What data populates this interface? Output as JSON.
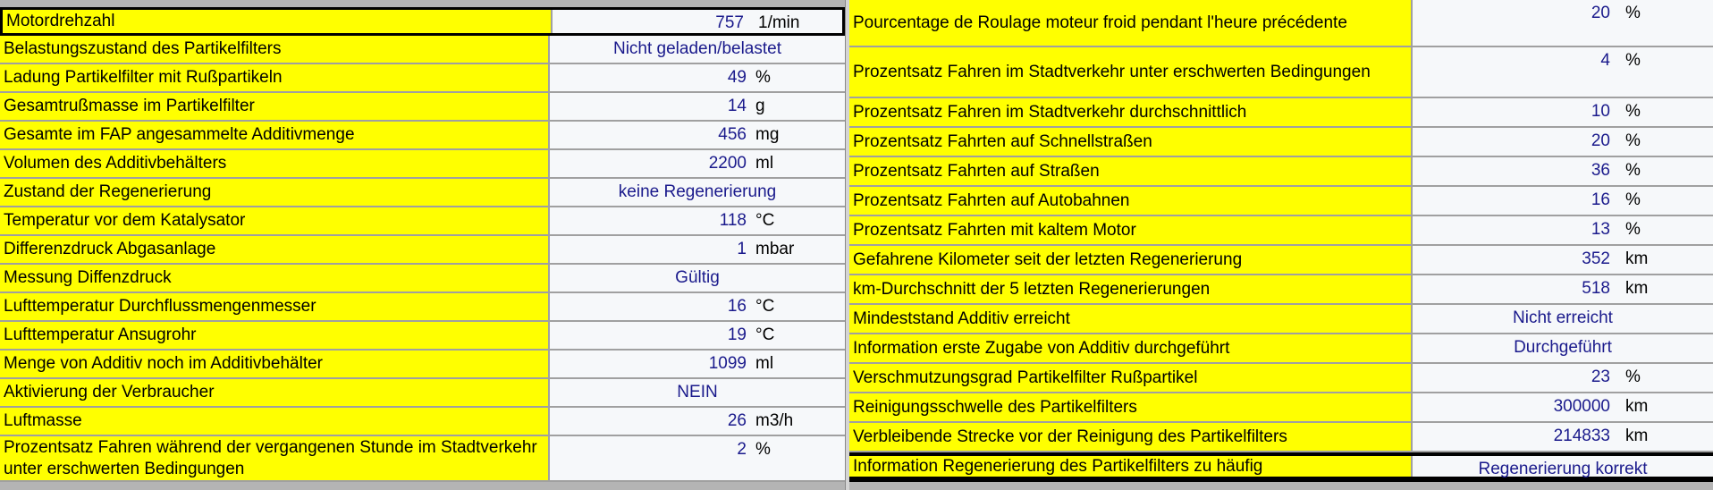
{
  "left": [
    {
      "label": "Motordrehzahl",
      "value": "757",
      "unit": "1/min"
    },
    {
      "label": "Belastungszustand des Partikelfilters",
      "text": "Nicht geladen/belastet"
    },
    {
      "label": "Ladung Partikelfilter mit Rußpartikeln",
      "value": "49",
      "unit": "%"
    },
    {
      "label": "Gesamtrußmasse im Partikelfilter",
      "value": "14",
      "unit": "g"
    },
    {
      "label": "Gesamte im FAP angesammelte Additivmenge",
      "value": "456",
      "unit": "mg"
    },
    {
      "label": "Volumen des Additivbehälters",
      "value": "2200",
      "unit": "ml"
    },
    {
      "label": "Zustand der Regenerierung",
      "text": "keine Regenerierung"
    },
    {
      "label": "Temperatur vor dem Katalysator",
      "value": "118",
      "unit": "°C"
    },
    {
      "label": "Differenzdruck Abgasanlage",
      "value": "1",
      "unit": "mbar"
    },
    {
      "label": "Messung Diffenzdruck",
      "text": "Gültig"
    },
    {
      "label": "Lufttemperatur Durchflussmengenmesser",
      "value": "16",
      "unit": "°C"
    },
    {
      "label": "Lufttemperatur Ansugrohr",
      "value": "19",
      "unit": "°C"
    },
    {
      "label": "Menge von Additiv noch im Additivbehälter",
      "value": "1099",
      "unit": "ml"
    },
    {
      "label": "Aktivierung der Verbraucher",
      "text": "NEIN"
    },
    {
      "label": "Luftmasse",
      "value": "26",
      "unit": "m3/h"
    },
    {
      "label": "Prozentsatz Fahren während der vergangenen Stunde im Stadtverkehr unter erschwerten Bedingungen",
      "value": "2",
      "unit": "%"
    }
  ],
  "right": [
    {
      "label": "Pourcentage de Roulage moteur froid pendant l'heure précédente",
      "value": "20",
      "unit": "%"
    },
    {
      "label": "Prozentsatz Fahren im Stadtverkehr unter erschwerten Bedingungen",
      "value": "4",
      "unit": "%"
    },
    {
      "label": "Prozentsatz Fahren im Stadtverkehr durchschnittlich",
      "value": "10",
      "unit": "%"
    },
    {
      "label": "Prozentsatz Fahrten auf Schnellstraßen",
      "value": "20",
      "unit": "%"
    },
    {
      "label": "Prozentsatz Fahrten auf Straßen",
      "value": "36",
      "unit": "%"
    },
    {
      "label": "Prozentsatz Fahrten auf Autobahnen",
      "value": "16",
      "unit": "%"
    },
    {
      "label": "Prozentsatz Fahrten mit kaltem Motor",
      "value": "13",
      "unit": "%"
    },
    {
      "label": "Gefahrene Kilometer seit der letzten Regenerierung",
      "value": "352",
      "unit": "km"
    },
    {
      "label": "km-Durchschnitt der 5 letzten Regenerierungen",
      "value": "518",
      "unit": "km"
    },
    {
      "label": "Mindeststand Additiv erreicht",
      "text": "Nicht erreicht"
    },
    {
      "label": "Information erste Zugabe von Additiv durchgeführt",
      "text": "Durchgeführt"
    },
    {
      "label": "Verschmutzungsgrad Partikelfilter Rußpartikel",
      "value": "23",
      "unit": "%"
    },
    {
      "label": "Reinigungsschwelle des Partikelfilters",
      "value": "300000",
      "unit": "km"
    },
    {
      "label": "Verbleibende Strecke vor der Reinigung des Partikelfilters",
      "value": "214833",
      "unit": "km"
    },
    {
      "label": "Information Regenerierung des Partikelfilters zu häufig",
      "text": "Regenerierung korrekt"
    }
  ],
  "colors": {
    "label_bg": "#ffff00",
    "value_text": "#1a1a8c",
    "value_bg": "#f6f8fa"
  }
}
